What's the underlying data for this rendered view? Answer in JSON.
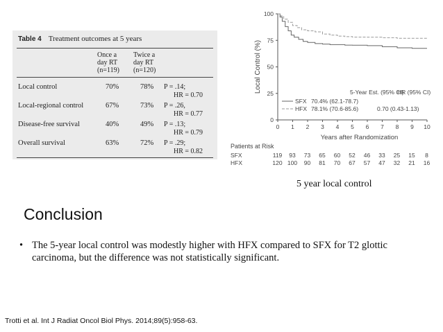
{
  "table": {
    "label": "Table 4",
    "title": "Treatment outcomes at 5 years",
    "col1": [
      "Once a",
      "day RT",
      "(n=119)"
    ],
    "col2": [
      "Twice a",
      "day RT",
      "(n=120)"
    ],
    "rows": [
      {
        "label": "Local control",
        "once": "70%",
        "twice": "78%",
        "p": "P = .14;",
        "hr": "HR = 0.70"
      },
      {
        "label": "Local-regional control",
        "once": "67%",
        "twice": "73%",
        "p": "P = .26,",
        "hr": "HR = 0.77"
      },
      {
        "label": "Disease-free survival",
        "once": "40%",
        "twice": "49%",
        "p": "P = .13;",
        "hr": "HR = 0.79"
      },
      {
        "label": "Overall survival",
        "once": "63%",
        "twice": "72%",
        "p": "P = .29;",
        "hr": "HR = 0.82"
      }
    ]
  },
  "chart_data": {
    "type": "line",
    "title": "",
    "xlabel": "Years after Randomization",
    "ylabel": "Local Control (%)",
    "xlim": [
      0,
      10
    ],
    "ylim": [
      0,
      100
    ],
    "x_ticks": [
      "0",
      "1",
      "2",
      "3",
      "4",
      "5",
      "6",
      "7",
      "8",
      "9",
      "10"
    ],
    "y_ticks": [
      "0",
      "25",
      "50",
      "75",
      "100"
    ],
    "series": [
      {
        "name": "SFX",
        "style": "solid",
        "x": [
          0,
          0.15,
          0.3,
          0.5,
          0.7,
          0.9,
          1.1,
          1.4,
          1.7,
          2.0,
          2.5,
          3.0,
          3.5,
          4.0,
          4.5,
          5.0,
          6.0,
          7.0,
          8.0,
          9.0,
          10.0
        ],
        "y": [
          100,
          97,
          93,
          88,
          84,
          80,
          78,
          76,
          74,
          73,
          72,
          71.5,
          71,
          71,
          70.5,
          70.4,
          70,
          69,
          68,
          67.5,
          67.5
        ]
      },
      {
        "name": "HFX",
        "style": "dashed",
        "x": [
          0,
          0.2,
          0.4,
          0.7,
          1.0,
          1.3,
          1.6,
          2.0,
          2.5,
          3.0,
          3.5,
          4.0,
          4.5,
          5.0,
          6.0,
          7.0,
          8.0,
          9.0,
          10.0
        ],
        "y": [
          100,
          98,
          95,
          92,
          89,
          87,
          85,
          84,
          83,
          81,
          80,
          79,
          78.5,
          78.1,
          78,
          77.5,
          77,
          77,
          77
        ]
      }
    ],
    "legend": {
      "header_est": "5-Year Est. (95% CI)",
      "header_hr": "HR (95% CI)",
      "entries": [
        {
          "name": "SFX",
          "est": "70.4% (62.1-78.7)",
          "hr": ""
        },
        {
          "name": "HFX",
          "est": "78.1% (70.6-85.6)",
          "hr": "0.70 (0.43-1.13)"
        }
      ]
    },
    "risk_table": {
      "title": "Patients at Risk",
      "rows": [
        {
          "name": "SFX",
          "values": [
            "119",
            "93",
            "73",
            "65",
            "60",
            "52",
            "46",
            "33",
            "25",
            "15",
            "8"
          ]
        },
        {
          "name": "HFX",
          "values": [
            "120",
            "100",
            "90",
            "81",
            "70",
            "67",
            "57",
            "47",
            "32",
            "21",
            "16"
          ]
        }
      ]
    }
  },
  "caption": "5 year local control",
  "heading": "Conclusion",
  "bullet": {
    "marker": "•",
    "text": "The 5-year local control was modestly higher with HFX compared to SFX for T2 glottic carcinoma, but the difference was not statistically significant."
  },
  "citation": "Trotti et al. Int J Radiat Oncol Biol Phys. 2014;89(5):958-63."
}
